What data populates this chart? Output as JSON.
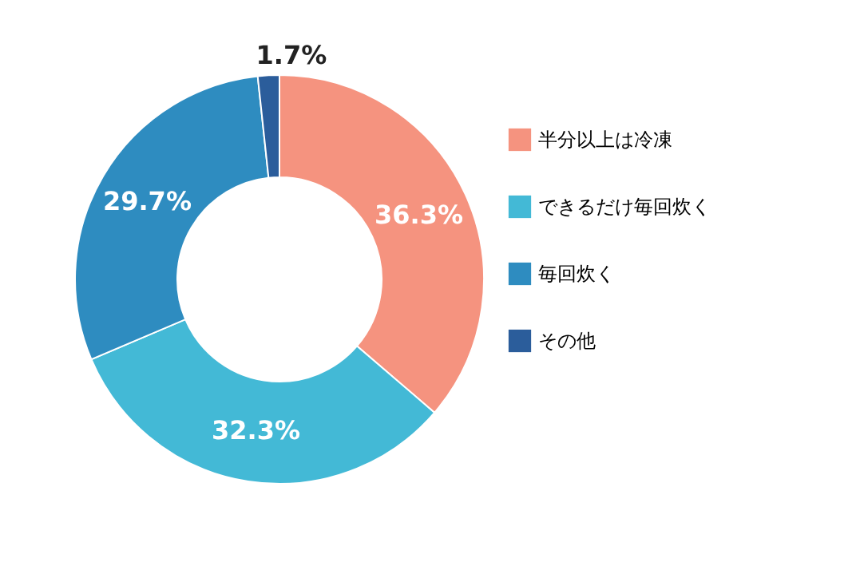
{
  "chart_data": {
    "type": "donut",
    "categories": [
      "半分以上は冷凍",
      "できるだけ毎回炊く",
      "毎回炊く",
      "その他"
    ],
    "values": [
      36.3,
      32.3,
      29.7,
      1.7
    ],
    "colors": [
      "#f5937f",
      "#43b9d6",
      "#2e8cc0",
      "#2b5d9b"
    ],
    "value_labels": [
      "36.3%",
      "32.3%",
      "29.7%",
      "1.7%"
    ],
    "legend": "right"
  }
}
